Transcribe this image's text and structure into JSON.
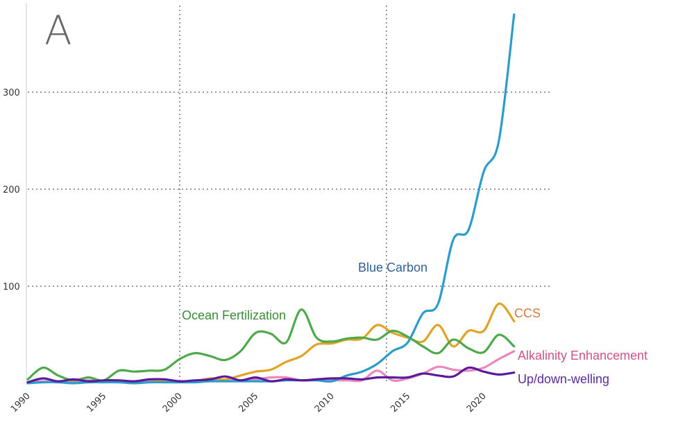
{
  "chart_data": {
    "type": "line",
    "panel_label": "A",
    "title": "",
    "xlabel": "",
    "ylabel": "",
    "xlim": [
      1990,
      2022
    ],
    "ylim": [
      0,
      380
    ],
    "x_ticks": [
      "1990",
      "1995",
      "2000",
      "2005",
      "2010",
      "2015",
      "2020"
    ],
    "y_ticks": [
      "100",
      "200",
      "300"
    ],
    "grid": "horizontal dotted at 100, 200, 300",
    "vertical_reference_lines": [
      2000,
      2013.6
    ],
    "x": [
      1990,
      1991,
      1992,
      1993,
      1994,
      1995,
      1996,
      1997,
      1998,
      1999,
      2000,
      2001,
      2002,
      2003,
      2004,
      2005,
      2006,
      2007,
      2008,
      2009,
      2010,
      2011,
      2012,
      2013,
      2014,
      2015,
      2016,
      2017,
      2018,
      2019,
      2020,
      2021,
      2022
    ],
    "series": [
      {
        "name": "Ocean Fertilization",
        "color": "#4ea94a",
        "label_color": "#3a8a3a",
        "values": [
          4,
          16,
          8,
          3,
          6,
          3,
          13,
          12,
          13,
          14,
          25,
          31,
          28,
          24,
          33,
          52,
          51,
          42,
          76,
          47,
          43,
          46,
          47,
          45,
          54,
          48,
          38,
          31,
          45,
          36,
          32,
          50,
          38
        ]
      },
      {
        "name": "CCS",
        "color": "#e0a325",
        "label_color": "#d9793a",
        "values": [
          null,
          null,
          null,
          null,
          null,
          null,
          null,
          null,
          4,
          2,
          2,
          2,
          5,
          4,
          8,
          12,
          14,
          22,
          28,
          40,
          41,
          45,
          46,
          60,
          52,
          47,
          43,
          60,
          38,
          54,
          54,
          82,
          64
        ]
      },
      {
        "name": "Blue Carbon",
        "color": "#2b9dcb",
        "label_color": "#2f5f9a",
        "values": [
          0,
          1,
          1,
          0,
          1,
          1,
          1,
          0,
          1,
          1,
          1,
          1,
          2,
          2,
          2,
          2,
          2,
          3,
          3,
          3,
          2,
          8,
          12,
          20,
          33,
          42,
          72,
          82,
          148,
          158,
          218,
          250,
          380
        ]
      },
      {
        "name": "Alkalinity Enhancement",
        "color": "#ec86bc",
        "label_color": "#d0508a",
        "values": [
          1,
          2,
          2,
          2,
          3,
          2,
          2,
          2,
          3,
          2,
          2,
          2,
          3,
          3,
          3,
          4,
          6,
          6,
          3,
          3,
          3,
          3,
          3,
          13,
          3,
          5,
          10,
          17,
          14,
          13,
          16,
          25,
          33
        ]
      },
      {
        "name": "Up/down-welling",
        "color": "#5b1a9c",
        "label_color": "#5a2a9a",
        "values": [
          1,
          5,
          2,
          4,
          2,
          3,
          3,
          2,
          4,
          4,
          2,
          3,
          4,
          7,
          3,
          6,
          2,
          4,
          3,
          4,
          5,
          5,
          4,
          6,
          6,
          6,
          10,
          8,
          7,
          16,
          12,
          9,
          11
        ]
      }
    ]
  }
}
